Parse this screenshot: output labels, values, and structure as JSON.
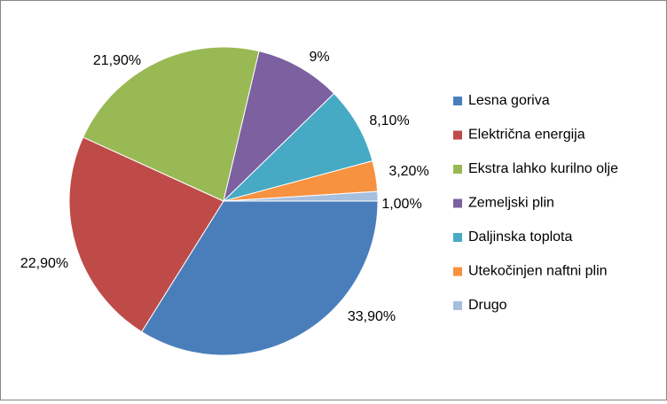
{
  "chart_data": {
    "type": "pie",
    "start_angle_deg": 0,
    "direction": "clockwise",
    "legend_position": "right",
    "slices": [
      {
        "label": "Lesna goriva",
        "value": 33.9,
        "value_label": "33,90%",
        "color": "#4A7EBB"
      },
      {
        "label": "Električna energija",
        "value": 22.9,
        "value_label": "22,90%",
        "color": "#BE4B48"
      },
      {
        "label": "Ekstra lahko kurilno olje",
        "value": 21.9,
        "value_label": "21,90%",
        "color": "#98B954"
      },
      {
        "label": "Zemeljski plin",
        "value": 9.0,
        "value_label": "9%",
        "color": "#7D60A0"
      },
      {
        "label": "Daljinska toplota",
        "value": 8.1,
        "value_label": "8,10%",
        "color": "#46AAC5"
      },
      {
        "label": "Utekočinjen naftni plin",
        "value": 3.2,
        "value_label": "3,20%",
        "color": "#F69240"
      },
      {
        "label": "Drugo",
        "value": 1.0,
        "value_label": "1,00%",
        "color": "#A7BFDE"
      }
    ]
  }
}
